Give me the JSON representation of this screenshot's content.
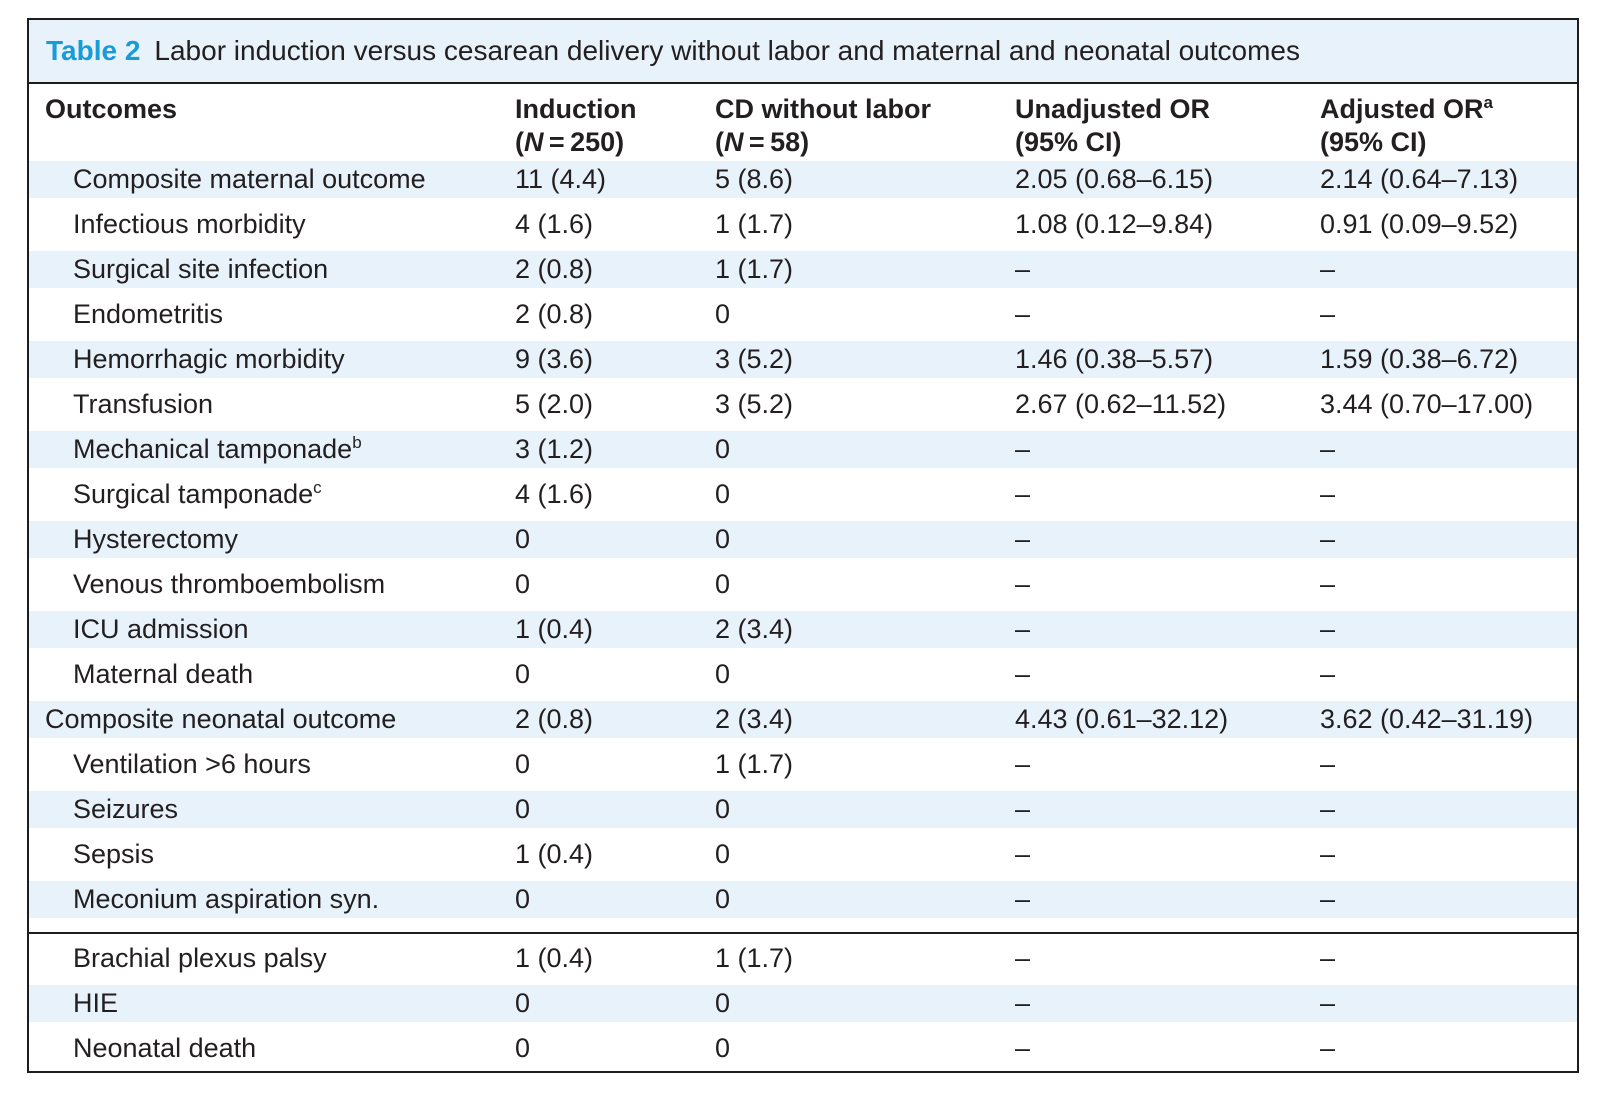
{
  "table": {
    "label": "Table 2",
    "title": "Labor induction versus cesarean delivery without labor and maternal and neonatal outcomes",
    "accent_color": "#189cd9",
    "row_shade_color": "#e7f2fb",
    "columns": {
      "outcomes": "Outcomes",
      "induction": {
        "name": "Induction",
        "n_open": "(",
        "n": "N",
        "n_rest": " = 250)"
      },
      "cd": {
        "name": "CD without labor",
        "n_open": "(",
        "n": "N",
        "n_rest": " = 58)"
      },
      "unadjusted": {
        "name": "Unadjusted OR",
        "ci": "(95% CI)"
      },
      "adjusted": {
        "name": "Adjusted OR",
        "sup": "a",
        "ci": "(95% CI)"
      }
    },
    "rows_part1": [
      {
        "label": "Composite maternal outcome",
        "indent": 1,
        "induction": "11 (4.4)",
        "cd": "5 (8.6)",
        "or_unadj": "2.05 (0.68–6.15)",
        "or_adj": "2.14 (0.64–7.13)"
      },
      {
        "label": "Infectious morbidity",
        "indent": 1,
        "induction": "4 (1.6)",
        "cd": "1 (1.7)",
        "or_unadj": "1.08 (0.12–9.84)",
        "or_adj": "0.91 (0.09–9.52)"
      },
      {
        "label": "Surgical site infection",
        "indent": 1,
        "induction": "2 (0.8)",
        "cd": "1 (1.7)",
        "or_unadj": "–",
        "or_adj": "–"
      },
      {
        "label": "Endometritis",
        "indent": 1,
        "induction": "2 (0.8)",
        "cd": "0",
        "or_unadj": "–",
        "or_adj": "–"
      },
      {
        "label": "Hemorrhagic morbidity",
        "indent": 1,
        "induction": "9 (3.6)",
        "cd": "3 (5.2)",
        "or_unadj": "1.46 (0.38–5.57)",
        "or_adj": "1.59 (0.38–6.72)"
      },
      {
        "label": "Transfusion",
        "indent": 1,
        "induction": "5 (2.0)",
        "cd": "3 (5.2)",
        "or_unadj": "2.67 (0.62–11.52)",
        "or_adj": "3.44 (0.70–17.00)"
      },
      {
        "label": "Mechanical tamponade",
        "sup": "b",
        "indent": 1,
        "induction": "3 (1.2)",
        "cd": "0",
        "or_unadj": "–",
        "or_adj": "–"
      },
      {
        "label": "Surgical tamponade",
        "sup": "c",
        "indent": 1,
        "induction": "4 (1.6)",
        "cd": "0",
        "or_unadj": "–",
        "or_adj": "–"
      },
      {
        "label": "Hysterectomy",
        "indent": 1,
        "induction": "0",
        "cd": "0",
        "or_unadj": "–",
        "or_adj": "–"
      },
      {
        "label": "Venous thromboembolism",
        "indent": 1,
        "induction": "0",
        "cd": "0",
        "or_unadj": "–",
        "or_adj": "–"
      },
      {
        "label": "ICU admission",
        "indent": 1,
        "induction": "1 (0.4)",
        "cd": "2 (3.4)",
        "or_unadj": "–",
        "or_adj": "–"
      },
      {
        "label": "Maternal death",
        "indent": 1,
        "induction": "0",
        "cd": "0",
        "or_unadj": "–",
        "or_adj": "–"
      },
      {
        "label": "Composite neonatal outcome",
        "indent": 0,
        "induction": "2 (0.8)",
        "cd": "2 (3.4)",
        "or_unadj": "4.43 (0.61–32.12)",
        "or_adj": "3.62 (0.42–31.19)"
      },
      {
        "label": "Ventilation >6 hours",
        "indent": 1,
        "induction": "0",
        "cd": "1 (1.7)",
        "or_unadj": "–",
        "or_adj": "–"
      },
      {
        "label": "Seizures",
        "indent": 1,
        "induction": "0",
        "cd": "0",
        "or_unadj": "–",
        "or_adj": "–"
      },
      {
        "label": "Sepsis",
        "indent": 1,
        "induction": "1 (0.4)",
        "cd": "0",
        "or_unadj": "–",
        "or_adj": "–"
      },
      {
        "label": "Meconium aspiration syn.",
        "indent": 1,
        "induction": "0",
        "cd": "0",
        "or_unadj": "–",
        "or_adj": "–"
      }
    ],
    "rows_part2": [
      {
        "label": "Brachial plexus palsy",
        "indent": 1,
        "induction": "1 (0.4)",
        "cd": "1 (1.7)",
        "or_unadj": "–",
        "or_adj": "–"
      },
      {
        "label": "HIE",
        "indent": 1,
        "induction": "0",
        "cd": "0",
        "or_unadj": "–",
        "or_adj": "–"
      },
      {
        "label": "Neonatal death",
        "indent": 1,
        "induction": "0",
        "cd": "0",
        "or_unadj": "–",
        "or_adj": "–"
      }
    ]
  }
}
